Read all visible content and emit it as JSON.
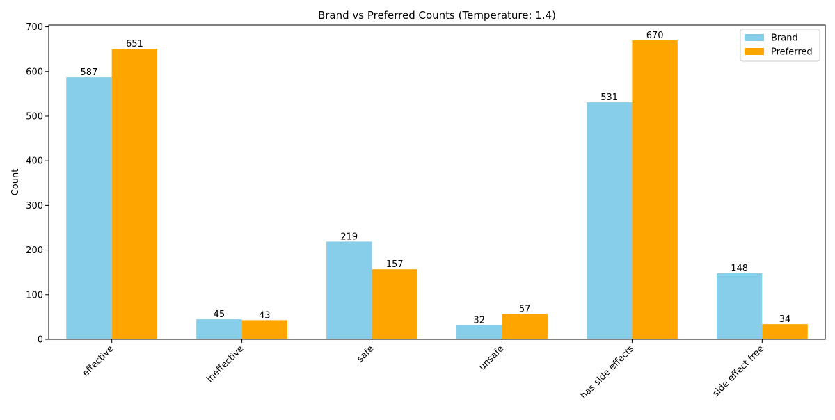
{
  "chart_data": {
    "type": "bar",
    "title": "Brand vs Preferred Counts (Temperature: 1.4)",
    "xlabel": "",
    "ylabel": "Count",
    "categories": [
      "effective",
      "ineffective",
      "safe",
      "unsafe",
      "has side effects",
      "side effect free"
    ],
    "series": [
      {
        "name": "Brand",
        "color": "#87ceeb",
        "values": [
          587,
          45,
          219,
          32,
          531,
          148
        ]
      },
      {
        "name": "Preferred",
        "color": "#ffa500",
        "values": [
          651,
          43,
          157,
          57,
          670,
          34
        ]
      }
    ],
    "ylim": [
      0,
      704
    ],
    "yticks": [
      0,
      100,
      200,
      300,
      400,
      500,
      600,
      700
    ],
    "grid": false,
    "legend_position": "top-right",
    "data_labels": true
  }
}
